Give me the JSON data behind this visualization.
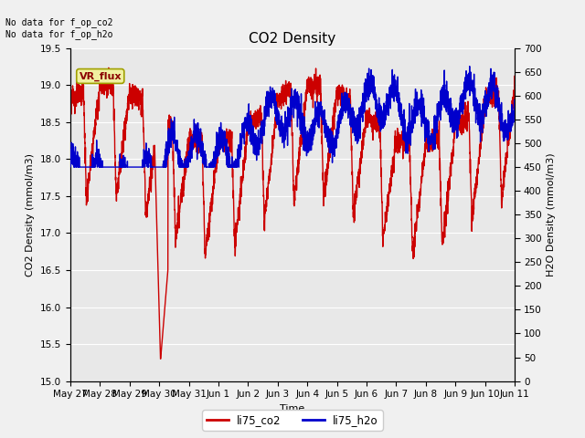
{
  "title": "CO2 Density",
  "xlabel": "Time",
  "ylabel_left": "CO2 Density (mmol/m3)",
  "ylabel_right": "H2O Density (mmol/m3)",
  "annotation_text": "No data for f_op_co2\nNo data for f_op_h2o",
  "vr_flux_label": "VR_flux",
  "legend_labels": [
    "li75_co2",
    "li75_h2o"
  ],
  "legend_colors": [
    "#cc0000",
    "#0000cc"
  ],
  "ylim_left": [
    15.0,
    19.5
  ],
  "ylim_right": [
    0,
    700
  ],
  "yticks_left": [
    15.0,
    15.5,
    16.0,
    16.5,
    17.0,
    17.5,
    18.0,
    18.5,
    19.0,
    19.5
  ],
  "yticks_right": [
    0,
    50,
    100,
    150,
    200,
    250,
    300,
    350,
    400,
    450,
    500,
    550,
    600,
    650,
    700
  ],
  "background_color": "#f0f0f0",
  "plot_bg_color": "#e8e8e8",
  "grid_color": "#ffffff",
  "co2_color": "#cc0000",
  "h2o_color": "#0000cc",
  "line_width": 1.0,
  "xtick_labels": [
    "May 27",
    "May 28",
    "May 29",
    "May 30",
    "May 31",
    "Jun 1",
    "Jun 2",
    "Jun 3",
    "Jun 4",
    "Jun 5",
    "Jun 6",
    "Jun 7",
    "Jun 8",
    "Jun 9",
    "Jun 10",
    "Jun 11"
  ],
  "num_days": 15,
  "title_fontsize": 11,
  "axis_label_fontsize": 8,
  "tick_fontsize": 7.5
}
